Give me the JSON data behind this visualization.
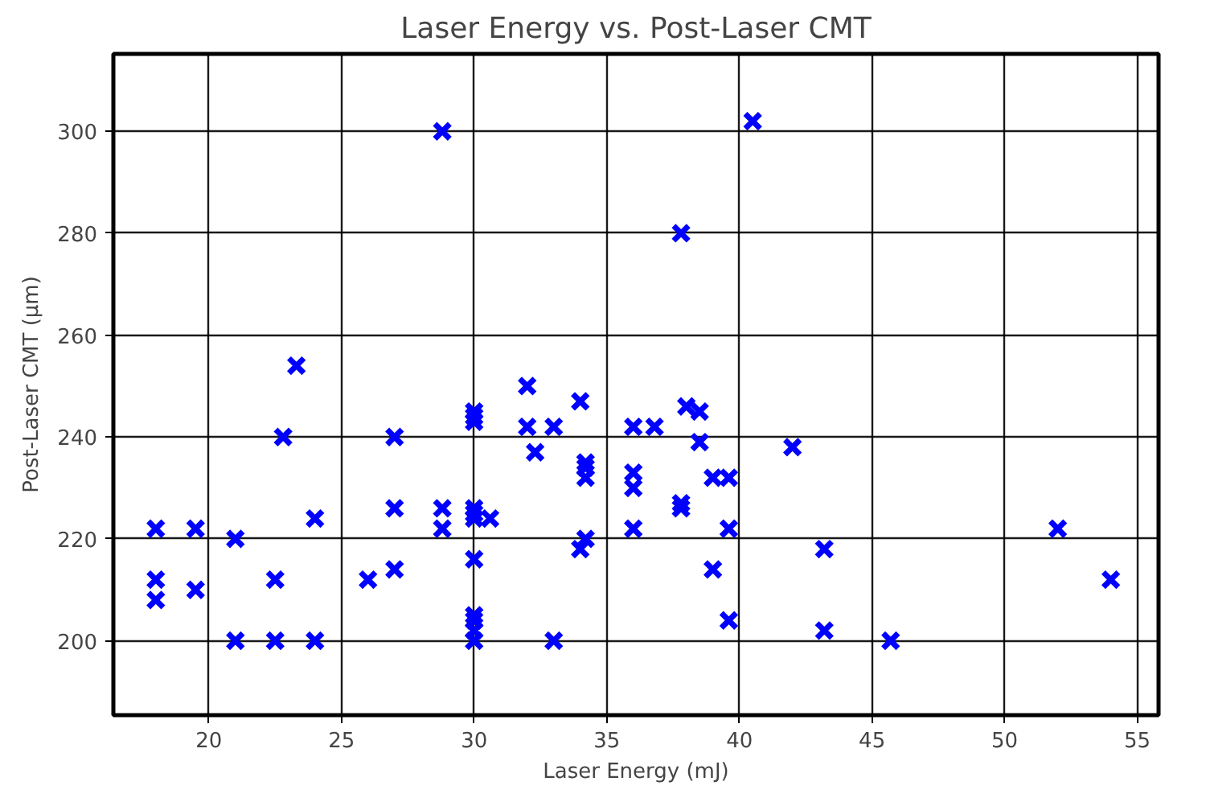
{
  "chart_data": {
    "type": "scatter",
    "title": "Laser Energy vs. Post-Laser CMT",
    "xlabel": "Laser Energy (mJ)",
    "ylabel": "Post-Laser CMT (µm)",
    "xlim": [
      16.4,
      55.8
    ],
    "ylim": [
      185.4,
      315.2
    ],
    "xticks": [
      20,
      25,
      30,
      35,
      40,
      45,
      50,
      55
    ],
    "yticks": [
      200,
      220,
      240,
      260,
      280,
      300
    ],
    "grid": true,
    "marker": "cross",
    "series": [
      {
        "color": "#0000ff",
        "x": [
          18,
          18,
          18,
          19.5,
          19.5,
          21,
          21,
          22.5,
          22.5,
          22.8,
          23.3,
          24,
          24,
          26,
          27,
          27,
          27,
          28.8,
          28.8,
          28.8,
          30,
          30,
          30,
          30,
          30,
          30,
          30,
          30,
          30,
          30,
          30,
          30.6,
          32,
          32,
          32.3,
          33,
          33,
          34,
          34.2,
          34.2,
          34.2,
          34.2,
          34,
          36,
          36,
          36,
          36,
          36.8,
          37.8,
          37.8,
          37.8,
          38,
          38.5,
          38.5,
          39,
          39.6,
          39,
          39.6,
          39.6,
          40.5,
          42,
          43.2,
          43.2,
          45.7,
          52,
          54
        ],
        "values": [
          222,
          212,
          208,
          222,
          210,
          220,
          200,
          212,
          200,
          240,
          254,
          224,
          200,
          212,
          240,
          226,
          214,
          300,
          226,
          222,
          245,
          244,
          243,
          226,
          225,
          224,
          216,
          205,
          204,
          202,
          200,
          224,
          250,
          242,
          237,
          242,
          200,
          247,
          235,
          234,
          232,
          220,
          218,
          242,
          233,
          230,
          222,
          242,
          280,
          227,
          226,
          246,
          245,
          239,
          232,
          232,
          214,
          222,
          204,
          302,
          238,
          218,
          202,
          200,
          222,
          212
        ]
      }
    ]
  }
}
